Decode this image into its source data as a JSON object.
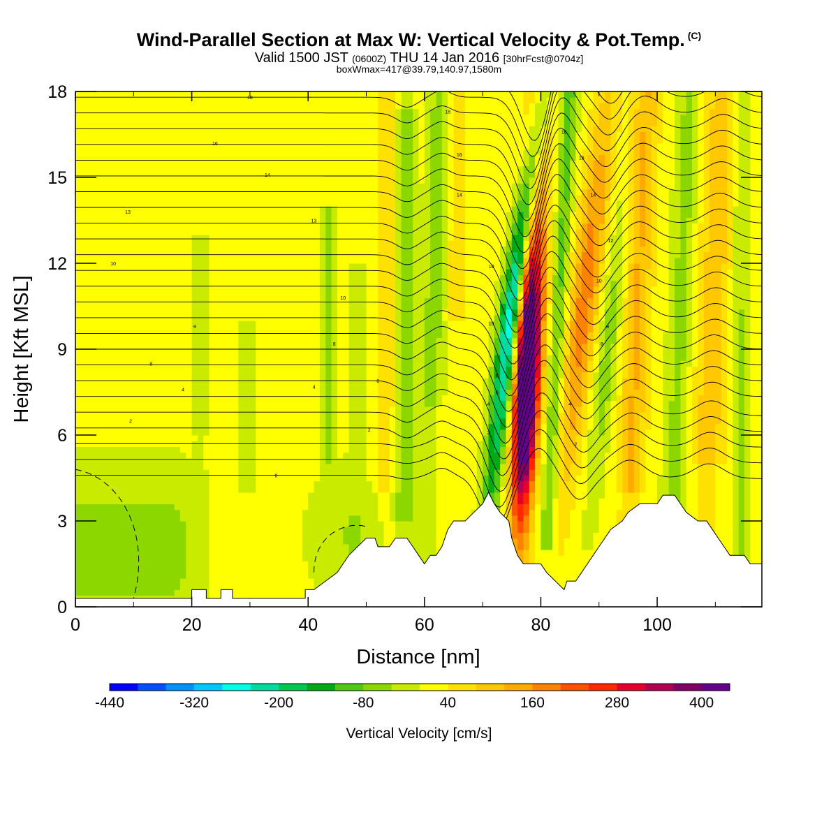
{
  "header": {
    "title_main": "Wind-Parallel Section at Max W: Vertical Velocity & Pot.Temp.",
    "title_tag": "(C)",
    "valid_prefix": "Valid 1500 JST",
    "valid_utc": "(0600Z)",
    "valid_date": "THU 14 Jan 2016",
    "forecast_info": "[30hrFcst@0704z]",
    "boxwmax": "boxWmax=417@39.79,140.97,1580m"
  },
  "chart_data": {
    "type": "heatmap",
    "xlabel": "Distance [nm]",
    "ylabel": "Height [Kft MSL]",
    "xlim": [
      0,
      118
    ],
    "ylim": [
      0,
      18
    ],
    "x_ticks": [
      0,
      20,
      40,
      60,
      80,
      100
    ],
    "y_ticks": [
      0,
      3,
      6,
      9,
      12,
      15,
      18
    ],
    "colorbar": {
      "label": "Vertical Velocity [cm/s]",
      "min": -440,
      "max": 440,
      "step": 40,
      "tick_labels": [
        "-440",
        "-320",
        "-200",
        "-80",
        "40",
        "160",
        "280",
        "400"
      ],
      "colors": [
        "#0000ff",
        "#0050ff",
        "#0090ff",
        "#00c8ff",
        "#00ffe6",
        "#00dca0",
        "#00c850",
        "#00aa14",
        "#50c814",
        "#8cd700",
        "#c8eb00",
        "#ffff00",
        "#ffe100",
        "#ffc800",
        "#ffaa00",
        "#ff8200",
        "#ff5000",
        "#ff2800",
        "#e6002d",
        "#b40050",
        "#820064",
        "#64008c"
      ]
    },
    "contour_labels": [
      {
        "text": "18",
        "x": 30,
        "y": 17.8
      },
      {
        "text": "18",
        "x": 64,
        "y": 17.3
      },
      {
        "text": "16",
        "x": 24,
        "y": 16.2
      },
      {
        "text": "16",
        "x": 66,
        "y": 15.8
      },
      {
        "text": "16",
        "x": 84,
        "y": 16.6
      },
      {
        "text": "16",
        "x": 87,
        "y": 15.7
      },
      {
        "text": "14",
        "x": 33,
        "y": 15.1
      },
      {
        "text": "14",
        "x": 66,
        "y": 14.4
      },
      {
        "text": "14",
        "x": 89,
        "y": 14.4
      },
      {
        "text": "13",
        "x": 9,
        "y": 13.8
      },
      {
        "text": "13",
        "x": 41,
        "y": 13.5
      },
      {
        "text": "12",
        "x": 92,
        "y": 12.8
      },
      {
        "text": "10",
        "x": 6.5,
        "y": 12.0
      },
      {
        "text": "10",
        "x": 46,
        "y": 10.8
      },
      {
        "text": "10",
        "x": 71.5,
        "y": 11.9
      },
      {
        "text": "10",
        "x": 71.5,
        "y": 9.9
      },
      {
        "text": "10",
        "x": 90,
        "y": 11.4
      },
      {
        "text": "9",
        "x": 20.5,
        "y": 9.8
      },
      {
        "text": "8",
        "x": 44.5,
        "y": 9.2
      },
      {
        "text": "8",
        "x": 91.5,
        "y": 9.8
      },
      {
        "text": "8",
        "x": 13,
        "y": 8.5
      },
      {
        "text": "8",
        "x": 90.5,
        "y": 9.2
      },
      {
        "text": "6",
        "x": 52,
        "y": 7.9
      },
      {
        "text": "6",
        "x": 72.5,
        "y": 8.1
      },
      {
        "text": "6",
        "x": 72.5,
        "y": 7.5
      },
      {
        "text": "4",
        "x": 18.5,
        "y": 7.6
      },
      {
        "text": "4",
        "x": 41,
        "y": 7.7
      },
      {
        "text": "4",
        "x": 71,
        "y": 7.1
      },
      {
        "text": "4",
        "x": 85,
        "y": 7.1
      },
      {
        "text": "2",
        "x": 9.5,
        "y": 6.5
      },
      {
        "text": "2",
        "x": 50.5,
        "y": 6.2
      },
      {
        "text": "2",
        "x": 71,
        "y": 6.1
      },
      {
        "text": "2",
        "x": 86,
        "y": 5.7
      },
      {
        "text": "0",
        "x": 34.5,
        "y": 4.6
      }
    ],
    "terrain_kft": [
      [
        0,
        0.3
      ],
      [
        20,
        0.3
      ],
      [
        20,
        0.6
      ],
      [
        22.5,
        0.6
      ],
      [
        22.5,
        0.3
      ],
      [
        25,
        0.3
      ],
      [
        25,
        0.6
      ],
      [
        27,
        0.6
      ],
      [
        27,
        0.3
      ],
      [
        39.5,
        0.3
      ],
      [
        39.5,
        0.6
      ],
      [
        41,
        0.6
      ],
      [
        43,
        0.9
      ],
      [
        45,
        1.2
      ],
      [
        46,
        1.5
      ],
      [
        47,
        1.8
      ],
      [
        48.5,
        2.1
      ],
      [
        50,
        2.4
      ],
      [
        51.5,
        2.4
      ],
      [
        52,
        2.1
      ],
      [
        54,
        2.1
      ],
      [
        55,
        2.4
      ],
      [
        57,
        2.4
      ],
      [
        58,
        2.1
      ],
      [
        59,
        1.8
      ],
      [
        60,
        1.5
      ],
      [
        61,
        1.8
      ],
      [
        62,
        1.8
      ],
      [
        63,
        2.1
      ],
      [
        63.5,
        2.4
      ],
      [
        64,
        2.7
      ],
      [
        65,
        3.0
      ],
      [
        67,
        3.0
      ],
      [
        68.5,
        3.3
      ],
      [
        70,
        3.6
      ],
      [
        71,
        4.0
      ],
      [
        72,
        3.6
      ],
      [
        73,
        3.3
      ],
      [
        74.5,
        3.0
      ],
      [
        75,
        2.4
      ],
      [
        76,
        1.8
      ],
      [
        77,
        1.5
      ],
      [
        78,
        1.5
      ],
      [
        79,
        1.5
      ],
      [
        80,
        1.5
      ],
      [
        81,
        1.2
      ],
      [
        82,
        1.0
      ],
      [
        83,
        0.8
      ],
      [
        84,
        0.6
      ],
      [
        84.5,
        0.9
      ],
      [
        86,
        0.9
      ],
      [
        87,
        1.2
      ],
      [
        88,
        1.5
      ],
      [
        89,
        1.8
      ],
      [
        90,
        2.1
      ],
      [
        91,
        2.4
      ],
      [
        92,
        2.7
      ],
      [
        94,
        3.0
      ],
      [
        95,
        3.3
      ],
      [
        97,
        3.6
      ],
      [
        100,
        3.6
      ],
      [
        101,
        3.9
      ],
      [
        103,
        3.9
      ],
      [
        104,
        3.6
      ],
      [
        105,
        3.3
      ],
      [
        107,
        3.0
      ],
      [
        108.5,
        3.0
      ],
      [
        109.5,
        2.7
      ],
      [
        110.5,
        2.4
      ],
      [
        111.5,
        2.1
      ],
      [
        112.5,
        1.8
      ],
      [
        115,
        1.8
      ],
      [
        116,
        1.5
      ],
      [
        118,
        1.5
      ],
      [
        118,
        0
      ]
    ]
  }
}
